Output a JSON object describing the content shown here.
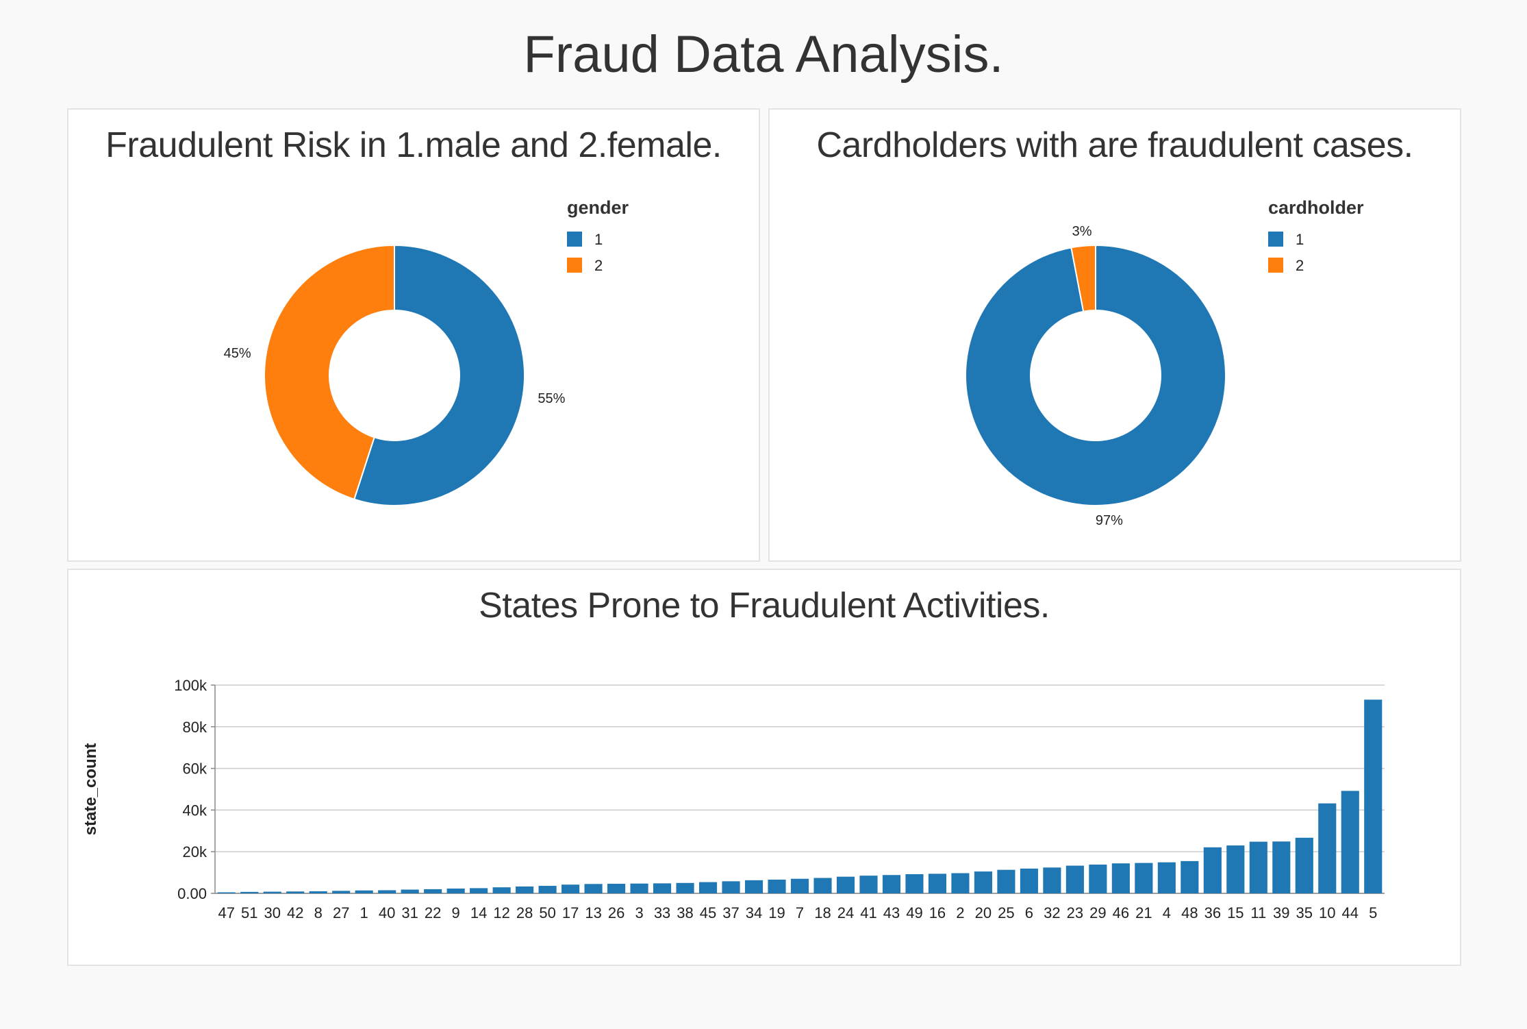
{
  "page": {
    "title": "Fraud Data Analysis."
  },
  "colors": {
    "blue": "#1f77b4",
    "orange": "#ff7f0e",
    "grid": "#cccccc"
  },
  "chart_data": [
    {
      "type": "pie",
      "donut": true,
      "title": "Fraudulent Risk in 1.male and 2.female.",
      "legend_title": "gender",
      "legend_position": "top-right",
      "categories": [
        "1",
        "2"
      ],
      "values": [
        55,
        45
      ],
      "labels": [
        "55%",
        "45%"
      ]
    },
    {
      "type": "pie",
      "donut": true,
      "title": "Cardholders with are fraudulent cases.",
      "legend_title": "cardholder",
      "legend_position": "top-right",
      "categories": [
        "1",
        "2"
      ],
      "values": [
        97,
        3
      ],
      "labels": [
        "97%",
        "3%"
      ]
    },
    {
      "type": "bar",
      "title": "States Prone to Fraudulent Activities.",
      "xlabel": "",
      "ylabel": "state_count",
      "ylim": [
        0,
        100000
      ],
      "yticks": [
        {
          "value": 0,
          "label": "0.00"
        },
        {
          "value": 20000,
          "label": "20k"
        },
        {
          "value": 40000,
          "label": "40k"
        },
        {
          "value": 60000,
          "label": "60k"
        },
        {
          "value": 80000,
          "label": "80k"
        },
        {
          "value": 100000,
          "label": "100k"
        }
      ],
      "grid": true,
      "categories": [
        "47",
        "51",
        "30",
        "42",
        "8",
        "27",
        "1",
        "40",
        "31",
        "22",
        "9",
        "14",
        "12",
        "28",
        "50",
        "17",
        "13",
        "26",
        "3",
        "33",
        "38",
        "45",
        "37",
        "34",
        "19",
        "7",
        "18",
        "24",
        "41",
        "43",
        "49",
        "16",
        "2",
        "20",
        "25",
        "6",
        "32",
        "23",
        "29",
        "46",
        "21",
        "4",
        "48",
        "36",
        "15",
        "11",
        "39",
        "35",
        "10",
        "44",
        "5"
      ],
      "values": [
        500,
        700,
        800,
        900,
        1000,
        1200,
        1400,
        1500,
        1800,
        2000,
        2300,
        2500,
        2900,
        3300,
        3600,
        4200,
        4500,
        4600,
        4700,
        4800,
        5000,
        5400,
        5800,
        6300,
        6600,
        7000,
        7400,
        8000,
        8500,
        8800,
        9200,
        9400,
        9700,
        10500,
        11300,
        11900,
        12400,
        13300,
        13800,
        14400,
        14600,
        14900,
        15500,
        22100,
        23000,
        24800,
        24900,
        26700,
        43200,
        49200,
        93000
      ]
    }
  ]
}
